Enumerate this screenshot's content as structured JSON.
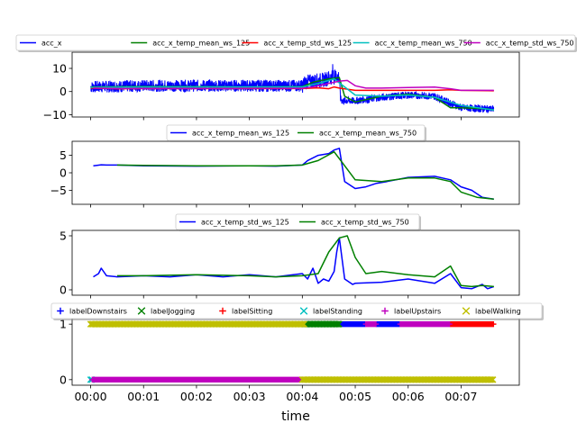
{
  "chart_data": [
    {
      "type": "line",
      "title": "",
      "xlabel": "",
      "ylabel": "",
      "ylim": [
        -11,
        17
      ],
      "xlim_minutes": [
        -0.35,
        8.1
      ],
      "yticks": [
        -10,
        0,
        10
      ],
      "ytick_labels": [
        "−10",
        "0",
        "10"
      ],
      "legend": "top, outside, 5 columns",
      "series": [
        {
          "name": "acc_x",
          "color": "#0000ff",
          "kind": "noisy",
          "x": [
            0.0,
            0.5,
            1.0,
            2.0,
            3.0,
            3.5,
            4.0,
            4.05,
            4.2,
            4.4,
            4.5,
            4.7,
            4.72,
            4.75,
            5.0,
            5.5,
            6.0,
            6.5,
            6.8,
            7.0,
            7.5,
            7.62
          ],
          "y": [
            2.0,
            2.2,
            2.5,
            2.5,
            2.5,
            2.5,
            2.5,
            4.0,
            4.5,
            5.0,
            6.0,
            6.5,
            -3.0,
            -4.0,
            -4.0,
            -2.5,
            -1.5,
            -2.0,
            -5.0,
            -7.0,
            -7.5,
            -7.5
          ]
        },
        {
          "name": "acc_x_temp_mean_ws_125",
          "color": "#008000",
          "x": [
            0.0,
            1.0,
            2.0,
            3.0,
            4.0,
            4.2,
            4.5,
            4.7,
            4.8,
            5.0,
            5.5,
            6.0,
            6.5,
            6.8,
            7.0,
            7.5,
            7.62
          ],
          "y": [
            2.0,
            2.2,
            2.1,
            2.0,
            2.1,
            4.0,
            5.5,
            6.0,
            -2.0,
            -4.5,
            -2.0,
            -1.2,
            -2.5,
            -7.0,
            -7.0,
            -7.5,
            -8.0
          ]
        },
        {
          "name": "acc_x_temp_std_ws_125",
          "color": "#ff0000",
          "x": [
            0.0,
            0.5,
            1.0,
            2.0,
            3.0,
            4.0,
            4.3,
            4.5,
            4.6,
            4.7,
            5.0,
            5.5,
            6.0,
            6.5,
            6.8,
            7.0,
            7.5,
            7.62
          ],
          "y": [
            1.5,
            1.2,
            1.3,
            1.3,
            1.3,
            1.3,
            1.6,
            1.2,
            2.0,
            1.5,
            0.5,
            0.5,
            0.5,
            0.5,
            0.8,
            0.5,
            0.4,
            0.3
          ]
        },
        {
          "name": "acc_x_temp_mean_ws_750",
          "color": "#00bfbf",
          "x": [
            0.0,
            1.0,
            2.0,
            3.0,
            4.0,
            4.3,
            4.6,
            4.8,
            5.0,
            5.5,
            6.0,
            6.5,
            7.0,
            7.62
          ],
          "y": [
            1.8,
            2.0,
            2.0,
            2.0,
            2.0,
            3.5,
            5.5,
            2.0,
            -1.5,
            -2.0,
            -1.5,
            -2.5,
            -6.0,
            -8.0
          ]
        },
        {
          "name": "acc_x_temp_std_ws_750",
          "color": "#bf00bf",
          "x": [
            0.05,
            0.5,
            1.0,
            2.0,
            3.0,
            4.0,
            4.2,
            4.5,
            4.7,
            4.85,
            5.0,
            5.2,
            5.5,
            6.0,
            6.5,
            6.8,
            7.0,
            7.3,
            7.62
          ],
          "y": [
            1.5,
            1.3,
            1.3,
            1.3,
            1.4,
            1.4,
            2.0,
            3.5,
            4.5,
            4.8,
            2.5,
            1.5,
            1.5,
            1.7,
            1.9,
            1.2,
            0.5,
            0.5,
            0.5
          ]
        }
      ]
    },
    {
      "type": "line",
      "title": "",
      "ylim": [
        -9,
        9
      ],
      "xlim_minutes": [
        -0.35,
        8.1
      ],
      "yticks": [
        -5,
        0,
        5
      ],
      "ytick_labels": [
        "−5",
        "0",
        "5"
      ],
      "legend": "top, outside, 2 columns",
      "series": [
        {
          "name": "acc_x_temp_mean_ws_125",
          "color": "#0000ff",
          "x": [
            0.05,
            0.2,
            0.3,
            0.5,
            1.0,
            2.0,
            3.0,
            3.5,
            4.0,
            4.1,
            4.3,
            4.5,
            4.6,
            4.7,
            4.8,
            5.0,
            5.2,
            5.4,
            5.6,
            6.0,
            6.5,
            6.8,
            7.0,
            7.2,
            7.4,
            7.62
          ],
          "y": [
            2.0,
            2.3,
            2.2,
            2.2,
            2.0,
            1.9,
            2.0,
            1.9,
            2.2,
            3.5,
            5.0,
            5.5,
            6.5,
            7.0,
            -2.5,
            -4.5,
            -4.0,
            -3.0,
            -2.5,
            -1.3,
            -1.0,
            -2.0,
            -4.0,
            -5.0,
            -7.0,
            -7.5
          ]
        },
        {
          "name": "acc_x_temp_mean_ws_750",
          "color": "#008000",
          "x": [
            0.5,
            1.0,
            2.0,
            3.0,
            3.5,
            4.0,
            4.3,
            4.6,
            4.8,
            5.0,
            5.5,
            6.0,
            6.5,
            6.8,
            7.0,
            7.3,
            7.62
          ],
          "y": [
            2.2,
            2.1,
            2.0,
            2.0,
            2.0,
            2.2,
            3.5,
            6.0,
            2.0,
            -2.0,
            -2.5,
            -1.5,
            -1.5,
            -2.5,
            -5.5,
            -7.0,
            -7.5
          ]
        }
      ]
    },
    {
      "type": "line",
      "title": "",
      "ylim": [
        -0.5,
        5.5
      ],
      "xlim_minutes": [
        -0.35,
        8.1
      ],
      "yticks": [
        0,
        5
      ],
      "ytick_labels": [
        "0",
        "5"
      ],
      "legend": "top, outside, 2 columns",
      "series": [
        {
          "name": "acc_x_temp_std_ws_125",
          "color": "#0000ff",
          "x": [
            0.05,
            0.15,
            0.2,
            0.3,
            0.5,
            1.0,
            1.5,
            2.0,
            2.5,
            3.0,
            3.5,
            4.0,
            4.1,
            4.2,
            4.3,
            4.4,
            4.5,
            4.6,
            4.65,
            4.7,
            4.8,
            4.95,
            5.0,
            5.5,
            6.0,
            6.5,
            6.8,
            7.0,
            7.2,
            7.4,
            7.5,
            7.62
          ],
          "y": [
            1.2,
            1.5,
            2.0,
            1.3,
            1.2,
            1.3,
            1.2,
            1.4,
            1.2,
            1.4,
            1.2,
            1.5,
            1.0,
            2.0,
            0.6,
            1.0,
            0.8,
            1.7,
            3.5,
            4.8,
            1.0,
            0.5,
            0.6,
            0.7,
            1.0,
            0.6,
            1.5,
            0.2,
            0.1,
            0.5,
            0.1,
            0.3
          ]
        },
        {
          "name": "acc_x_temp_std_ws_750",
          "color": "#008000",
          "x": [
            0.5,
            1.0,
            2.0,
            3.0,
            3.5,
            4.0,
            4.3,
            4.5,
            4.7,
            4.85,
            5.0,
            5.2,
            5.5,
            6.0,
            6.5,
            6.8,
            7.0,
            7.2,
            7.4,
            7.62
          ],
          "y": [
            1.3,
            1.3,
            1.4,
            1.3,
            1.2,
            1.3,
            1.5,
            3.5,
            4.8,
            5.0,
            3.0,
            1.5,
            1.7,
            1.4,
            1.2,
            2.2,
            0.4,
            0.3,
            0.4,
            0.3
          ]
        }
      ]
    },
    {
      "type": "scatter",
      "title": "",
      "xlabel": "time",
      "ylim": [
        -0.1,
        1.1
      ],
      "xlim_minutes": [
        -0.35,
        8.1
      ],
      "yticks": [
        0,
        1
      ],
      "ytick_labels": [
        "0",
        "1"
      ],
      "xticks_minutes": [
        0,
        1,
        2,
        3,
        4,
        5,
        6,
        7
      ],
      "xtick_labels": [
        "00:00",
        "00:01",
        "00:02",
        "00:03",
        "00:04",
        "00:05",
        "00:06",
        "00:07"
      ],
      "legend": "top, outside, 6 columns",
      "series": [
        {
          "name": "labelDownstairs",
          "color": "#0000ff",
          "marker": "+",
          "segments": [
            {
              "y": 1,
              "x0": 4.7,
              "x1": 5.2
            },
            {
              "y": 1,
              "x0": 5.4,
              "x1": 5.85
            }
          ]
        },
        {
          "name": "labelJogging",
          "color": "#008000",
          "marker": "x",
          "segments": [
            {
              "y": 1,
              "x0": 4.05,
              "x1": 4.7
            }
          ]
        },
        {
          "name": "labelSitting",
          "color": "#ff0000",
          "marker": "+",
          "segments": [
            {
              "y": 1,
              "x0": 6.8,
              "x1": 7.62
            }
          ]
        },
        {
          "name": "labelStanding",
          "color": "#00bfbf",
          "marker": "x",
          "segments": [
            {
              "y": 0,
              "x0": 0.0,
              "x1": 0.03
            }
          ]
        },
        {
          "name": "labelUpstairs",
          "color": "#bf00bf",
          "marker": "+",
          "segments": [
            {
              "y": 0,
              "x0": 0.03,
              "x1": 4.0
            },
            {
              "y": 1,
              "x0": 5.2,
              "x1": 5.4
            },
            {
              "y": 1,
              "x0": 5.85,
              "x1": 6.8
            }
          ]
        },
        {
          "name": "labelWalking",
          "color": "#bfbf00",
          "marker": "x",
          "segments": [
            {
              "y": 1,
              "x0": 0.0,
              "x1": 4.05
            },
            {
              "y": 0,
              "x0": 4.0,
              "x1": 7.62
            }
          ]
        }
      ]
    }
  ]
}
